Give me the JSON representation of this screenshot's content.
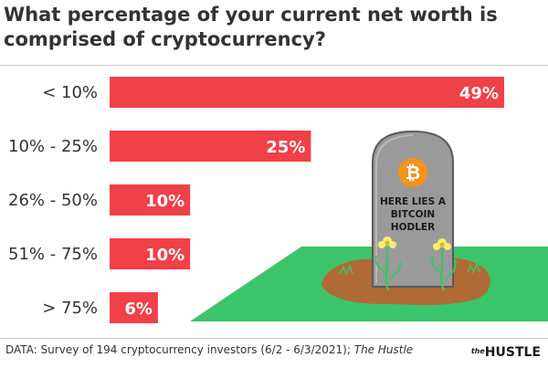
{
  "title": "What percentage of your current net worth is comprised of cryptocurrency?",
  "footer": {
    "source_prefix": "DATA: Survey of 194 cryptocurrency investors (6/2 - 6/3/2021); ",
    "source_name": "The Hustle"
  },
  "brand": {
    "the": "the",
    "name": "HUSTLE"
  },
  "illustration": {
    "tombstone_lines": [
      "HERE LIES A",
      "BITCOIN",
      "HODLER"
    ],
    "coin_symbol": "₿"
  },
  "colors": {
    "bar": "#f04048",
    "grass": "#3cc46a",
    "dirt": "#b06a35",
    "stone": "#9a9a9a",
    "coin": "#f5921a"
  },
  "chart_data": {
    "type": "bar",
    "orientation": "horizontal",
    "categories": [
      "< 10%",
      "10% - 25%",
      "26% - 50%",
      "51% - 75%",
      "> 75%"
    ],
    "values": [
      49,
      25,
      10,
      10,
      6
    ],
    "value_labels": [
      "49%",
      "25%",
      "10%",
      "10%",
      "6%"
    ],
    "xlim": [
      0,
      49
    ],
    "grid": false,
    "legend": "none"
  }
}
